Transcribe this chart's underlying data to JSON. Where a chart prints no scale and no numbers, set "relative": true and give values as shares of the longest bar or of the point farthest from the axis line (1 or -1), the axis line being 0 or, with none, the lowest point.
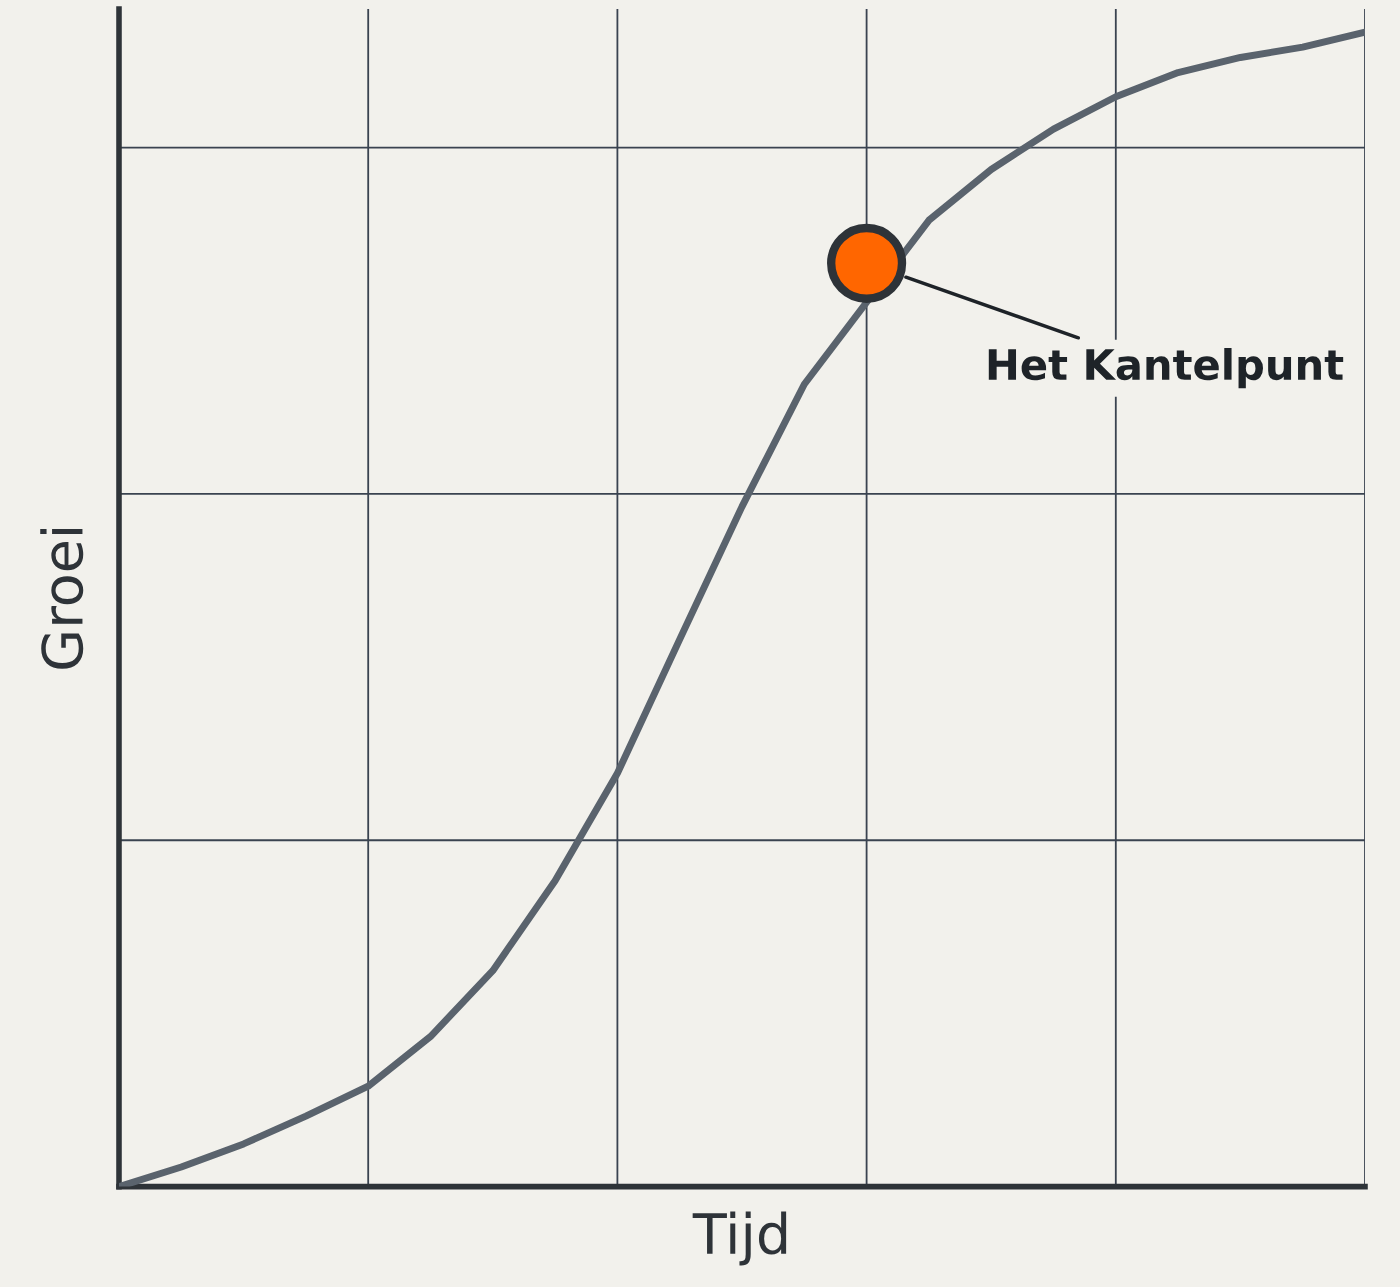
{
  "chart_data": {
    "type": "line",
    "relative": true,
    "xlabel": "Tijd",
    "ylabel": "Groei",
    "grid": true,
    "tick_labels": false,
    "marker": "none",
    "categories": [
      null,
      null,
      null,
      null,
      null,
      null,
      null,
      null,
      null,
      null,
      null,
      null,
      null,
      null,
      null,
      null,
      null,
      null,
      null,
      null,
      null
    ],
    "series": [
      {
        "color": "#5a636d",
        "values": [
          0,
          0.017,
          0.037,
          0.061,
          0.087,
          0.13,
          0.187,
          0.265,
          0.358,
          0.474,
          0.589,
          0.695,
          null,
          0.837,
          0.881,
          0.916,
          0.944,
          0.965,
          0.978,
          0.987,
          1
        ]
      }
    ],
    "annotations": [
      "Het Kantelpunt"
    ]
  }
}
